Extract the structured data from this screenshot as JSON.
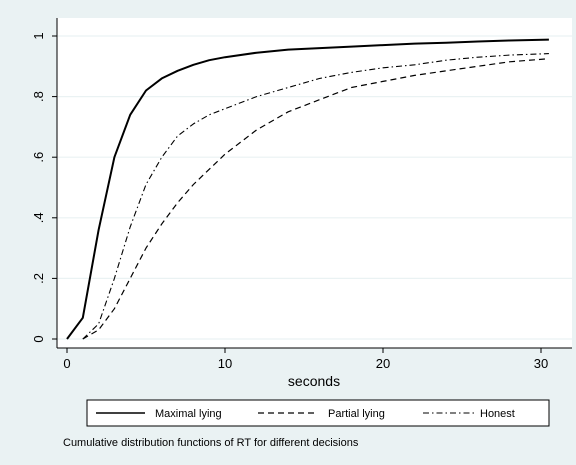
{
  "chart_data": {
    "type": "line",
    "title": "",
    "xlabel": "seconds",
    "ylabel": "",
    "xlim": [
      0,
      31
    ],
    "ylim": [
      0,
      1
    ],
    "xticks": [
      0,
      10,
      20,
      30
    ],
    "xtick_labels": [
      "0",
      "10",
      "20",
      "30"
    ],
    "yticks": [
      0,
      0.2,
      0.4,
      0.6,
      0.8,
      1
    ],
    "ytick_labels": [
      "0",
      ".2",
      ".4",
      ".6",
      ".8",
      "1"
    ],
    "grid": "horizontal",
    "legend_position": "bottom",
    "note": "Cumulative distribution functions of RT for different decisions",
    "series": [
      {
        "name": "Maximal lying",
        "style": "solid",
        "x": [
          0,
          1,
          2,
          3,
          4,
          5,
          6,
          7,
          8,
          9,
          10,
          12,
          14,
          16,
          18,
          20,
          22,
          24,
          26,
          28,
          30.5
        ],
        "y": [
          0,
          0.07,
          0.36,
          0.6,
          0.74,
          0.82,
          0.86,
          0.885,
          0.905,
          0.92,
          0.93,
          0.945,
          0.955,
          0.96,
          0.965,
          0.97,
          0.975,
          0.978,
          0.982,
          0.985,
          0.988
        ]
      },
      {
        "name": "Partial lying",
        "style": "dashed",
        "x": [
          1,
          2,
          3,
          4,
          5,
          6,
          7,
          8,
          9,
          10,
          12,
          14,
          16,
          18,
          20,
          22,
          24,
          26,
          28,
          30.5
        ],
        "y": [
          0,
          0.03,
          0.1,
          0.2,
          0.3,
          0.38,
          0.45,
          0.51,
          0.56,
          0.61,
          0.69,
          0.75,
          0.79,
          0.83,
          0.85,
          0.87,
          0.885,
          0.9,
          0.915,
          0.925
        ]
      },
      {
        "name": "Honest",
        "style": "dash-dot",
        "x": [
          1,
          2,
          3,
          4,
          5,
          6,
          7,
          8,
          9,
          10,
          12,
          14,
          16,
          18,
          20,
          22,
          24,
          26,
          28,
          30.5
        ],
        "y": [
          0,
          0.05,
          0.2,
          0.37,
          0.51,
          0.6,
          0.67,
          0.71,
          0.74,
          0.76,
          0.8,
          0.83,
          0.86,
          0.88,
          0.895,
          0.905,
          0.92,
          0.93,
          0.937,
          0.942
        ]
      }
    ]
  }
}
